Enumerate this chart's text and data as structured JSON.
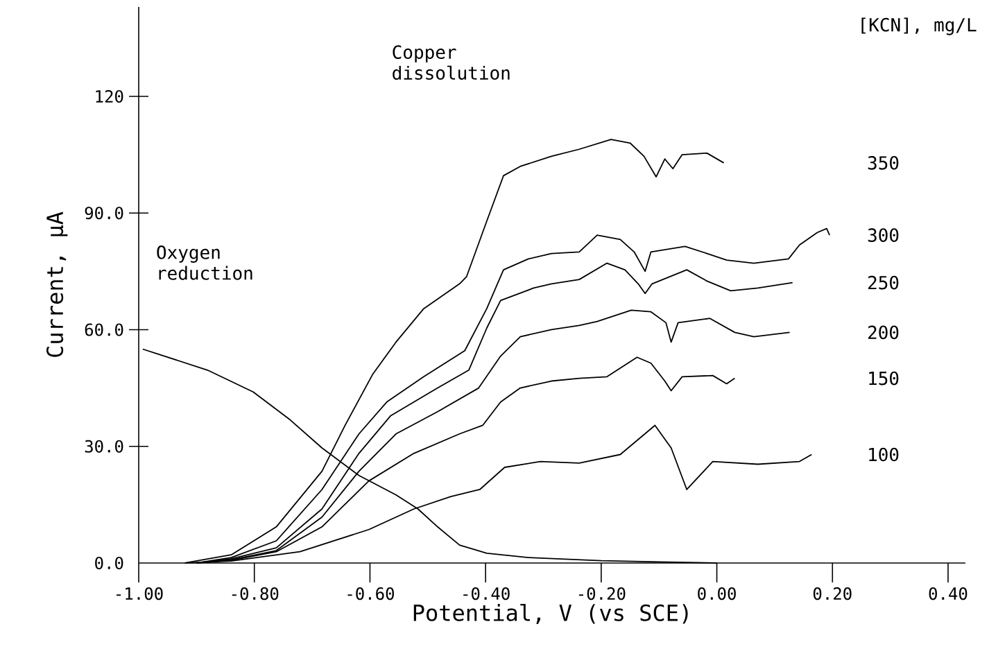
{
  "chart_data": {
    "type": "line",
    "xlabel": "Potential, V (vs SCE)",
    "ylabel": "Current, µA",
    "legend_title": "[KCN], mg/L",
    "annotations": [
      "Copper dissolution",
      "Oxygen reduction"
    ],
    "xlim": [
      -1.0,
      0.43
    ],
    "ylim": [
      0,
      143
    ],
    "xticks": [
      {
        "value": -1.0,
        "label": "-1.00"
      },
      {
        "value": -0.8,
        "label": "-0.80"
      },
      {
        "value": -0.6,
        "label": "-0.60"
      },
      {
        "value": -0.4,
        "label": "-0.40"
      },
      {
        "value": -0.2,
        "label": "-0.20"
      },
      {
        "value": 0,
        "label": "0.00"
      },
      {
        "value": 0.2,
        "label": "0.20"
      },
      {
        "value": 0.4,
        "label": "0.40"
      }
    ],
    "yticks": [
      {
        "value": 0,
        "label": "0.0"
      },
      {
        "value": 30,
        "label": "30.0"
      },
      {
        "value": 60,
        "label": "60.0"
      },
      {
        "value": 90,
        "label": "90.0"
      },
      120
    ],
    "grid": false,
    "marker": "none",
    "line_style": "solid",
    "series": [
      {
        "name": "350",
        "color": "#000000",
        "x": [
          -0.92,
          -0.84,
          -0.762,
          -0.683,
          -0.643,
          -0.595,
          -0.555,
          -0.507,
          -0.445,
          -0.433,
          -0.398,
          -0.369,
          -0.34,
          -0.286,
          -0.238,
          -0.183,
          -0.15,
          -0.126,
          -0.105,
          -0.09,
          -0.076,
          -0.06,
          -0.017,
          0.012
        ],
        "values": [
          0,
          2.1,
          9.3,
          23.6,
          35.4,
          48.6,
          56.8,
          65.4,
          71.8,
          73.6,
          87.9,
          99.6,
          102,
          104.6,
          106.4,
          108.9,
          108,
          104.6,
          99.3,
          103.9,
          101.4,
          105,
          105.4,
          102.9
        ]
      },
      {
        "name": "300",
        "color": "#000000",
        "x": [
          -0.9,
          -0.84,
          -0.762,
          -0.683,
          -0.619,
          -0.571,
          -0.507,
          -0.436,
          -0.398,
          -0.369,
          -0.326,
          -0.286,
          -0.238,
          -0.207,
          -0.167,
          -0.143,
          -0.124,
          -0.114,
          -0.055,
          -0.017,
          0.017,
          0.064,
          0.124,
          0.143,
          0.174,
          0.19,
          0.195
        ],
        "values": [
          0,
          1.4,
          5.7,
          18.9,
          33.2,
          41.4,
          47.9,
          54.6,
          65.4,
          75.4,
          78.2,
          79.6,
          80,
          84.3,
          83.2,
          80,
          75,
          80,
          81.4,
          79.6,
          77.9,
          77.1,
          78.2,
          81.8,
          85,
          86,
          84.3
        ]
      },
      {
        "name": "250",
        "color": "#000000",
        "x": [
          -0.9,
          -0.84,
          -0.762,
          -0.683,
          -0.619,
          -0.564,
          -0.483,
          -0.429,
          -0.398,
          -0.374,
          -0.317,
          -0.286,
          -0.238,
          -0.19,
          -0.159,
          -0.136,
          -0.124,
          -0.112,
          -0.052,
          -0.017,
          0.024,
          0.071,
          0.131
        ],
        "values": [
          0,
          1.1,
          3.9,
          13.9,
          28.2,
          37.9,
          45,
          49.6,
          60.4,
          67.5,
          70.7,
          71.8,
          72.9,
          77.1,
          75.4,
          71.8,
          69.3,
          71.8,
          75.4,
          72.5,
          70,
          70.7,
          72.1
        ]
      },
      {
        "name": "200",
        "color": "#000000",
        "x": [
          -0.9,
          -0.84,
          -0.762,
          -0.683,
          -0.619,
          -0.555,
          -0.483,
          -0.412,
          -0.374,
          -0.34,
          -0.286,
          -0.238,
          -0.207,
          -0.148,
          -0.114,
          -0.088,
          -0.079,
          -0.067,
          -0.012,
          0.031,
          0.064,
          0.126
        ],
        "values": [
          0,
          0.8,
          3.2,
          11.8,
          23.6,
          33.2,
          38.9,
          45,
          53.2,
          58.2,
          60,
          61.1,
          62.1,
          65,
          64.6,
          61.8,
          56.8,
          61.8,
          62.9,
          59.3,
          58.2,
          59.3
        ]
      },
      {
        "name": "150",
        "color": "#000000",
        "x": [
          -0.9,
          -0.84,
          -0.762,
          -0.683,
          -0.602,
          -0.524,
          -0.445,
          -0.405,
          -0.374,
          -0.34,
          -0.286,
          -0.238,
          -0.19,
          -0.138,
          -0.114,
          -0.09,
          -0.079,
          -0.06,
          -0.007,
          0.017,
          0.031
        ],
        "values": [
          0,
          0.7,
          2.9,
          9.3,
          21.1,
          28.2,
          33.2,
          35.4,
          41.4,
          45,
          46.8,
          47.5,
          47.9,
          52.9,
          51.4,
          46.8,
          44.3,
          47.9,
          48.2,
          46.1,
          47.5
        ]
      },
      {
        "name": "100",
        "color": "#000000",
        "x": [
          -0.92,
          -0.84,
          -0.721,
          -0.602,
          -0.524,
          -0.46,
          -0.41,
          -0.367,
          -0.305,
          -0.238,
          -0.167,
          -0.107,
          -0.079,
          -0.052,
          -0.007,
          0.071,
          0.143,
          0.164
        ],
        "values": [
          0,
          0.5,
          2.9,
          8.6,
          13.9,
          17.1,
          18.9,
          24.6,
          26.1,
          25.7,
          27.9,
          35.4,
          29.6,
          18.9,
          26.1,
          25.4,
          26.1,
          27.9
        ]
      },
      {
        "color": "#000000",
        "x": [
          -0.993,
          -0.881,
          -0.802,
          -0.738,
          -0.683,
          -0.619,
          -0.555,
          -0.517,
          -0.483,
          -0.445,
          -0.398,
          -0.326,
          -0.2,
          -0.1,
          0.0
        ],
        "values": [
          55,
          49.6,
          44,
          36.8,
          29.6,
          22.5,
          17.5,
          13.9,
          9.3,
          4.6,
          2.5,
          1.4,
          0.6,
          0.3,
          0
        ]
      }
    ]
  }
}
